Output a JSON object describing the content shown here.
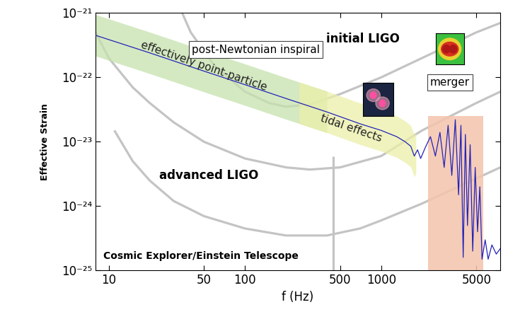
{
  "chart_data": {
    "type": "line",
    "x_label": "f (Hz)",
    "y_label": "Effective Strain",
    "log": true,
    "xlim": [
      8,
      7500
    ],
    "ylim": [
      1e-25,
      1e-21
    ],
    "xticks": [
      10,
      50,
      100,
      500,
      1000,
      5000
    ],
    "yticks": [
      {
        "value": 1e-25,
        "label": "10⁻²⁵"
      },
      {
        "value": 1e-24,
        "label": "10⁻²⁴"
      },
      {
        "value": 1e-23,
        "label": "10⁻²³"
      },
      {
        "value": 1e-22,
        "label": "10⁻²²"
      },
      {
        "value": 1e-21,
        "label": "10⁻²¹"
      }
    ],
    "series": [
      {
        "name": "initial LIGO",
        "color": "#c4c4c4",
        "x": [
          30,
          40,
          60,
          100,
          150,
          200,
          300,
          500,
          1000,
          2000,
          5000,
          7500
        ],
        "values": [
          2e-21,
          5e-22,
          1.5e-22,
          6e-23,
          4e-23,
          3.5e-23,
          3.8e-23,
          5.5e-23,
          1e-22,
          2e-22,
          5e-22,
          7e-22
        ]
      },
      {
        "name": "advanced LIGO",
        "color": "#c4c4c4",
        "x": [
          8,
          10,
          15,
          20,
          30,
          50,
          100,
          200,
          300,
          500,
          1000,
          2000,
          5000,
          7500
        ],
        "values": [
          5e-22,
          2e-22,
          7e-23,
          4e-23,
          2e-23,
          1e-23,
          5.5e-24,
          4e-24,
          3.7e-24,
          4e-24,
          6e-24,
          1.5e-23,
          4e-23,
          6e-23
        ]
      },
      {
        "name": "Cosmic Explorer/Einstein Telescope",
        "color": "#c4c4c4",
        "x": [
          11,
          15,
          20,
          30,
          50,
          100,
          200,
          400,
          700,
          1000,
          2000,
          5000,
          7500
        ],
        "values": [
          1.5e-23,
          5e-24,
          2.5e-24,
          1.2e-24,
          7e-25,
          4.5e-25,
          3.5e-25,
          3.5e-25,
          4.5e-25,
          6e-25,
          1.1e-24,
          2.7e-24,
          4e-24
        ]
      },
      {
        "color": "#c4c4c4",
        "x": [
          445,
          445
        ],
        "values": [
          1e-25,
          6e-24
        ]
      },
      {
        "color": "#2323b8",
        "x": [
          8,
          20,
          50,
          100,
          200,
          400,
          700,
          1000,
          1300,
          1500,
          1650,
          1750,
          1850,
          1950,
          2100,
          2300,
          2500,
          2700,
          2900,
          3100,
          3300,
          3500,
          3700,
          3850,
          4000,
          4150,
          4300,
          4500,
          4700,
          4900,
          5100,
          5300,
          5500,
          5800,
          6100,
          6500,
          7000,
          7500
        ],
        "values": [
          4.5e-22,
          2.4e-22,
          1.25e-22,
          7.7e-23,
          4.7e-23,
          2.9e-23,
          1.9e-23,
          1.5e-23,
          1.2e-23,
          1e-23,
          8.5e-24,
          6e-24,
          7.5e-24,
          5.5e-24,
          8e-24,
          1.2e-23,
          6e-24,
          1.4e-23,
          4e-24,
          1.8e-23,
          3e-24,
          2.2e-23,
          1.5e-24,
          1.8e-23,
          1.6e-25,
          1.3e-23,
          5e-25,
          9e-24,
          2e-25,
          4e-24,
          4e-25,
          2e-24,
          1.5e-25,
          3e-25,
          1.5e-25,
          2.5e-25,
          1.8e-25,
          2.2e-25
        ]
      }
    ],
    "regions": [
      {
        "label": "effectively point-particle",
        "color": "#c6e2ad",
        "x": [
          8,
          400
        ]
      },
      {
        "label": "tidal effects",
        "color": "#ecefa9",
        "x": [
          250,
          1800
        ]
      },
      {
        "label": "merger",
        "color": "#f4c4ac",
        "x": [
          2200,
          5600
        ],
        "y": [
          1e-25,
          2.5e-23
        ]
      }
    ],
    "annotations": [
      "post-Newtonian inspiral"
    ]
  }
}
